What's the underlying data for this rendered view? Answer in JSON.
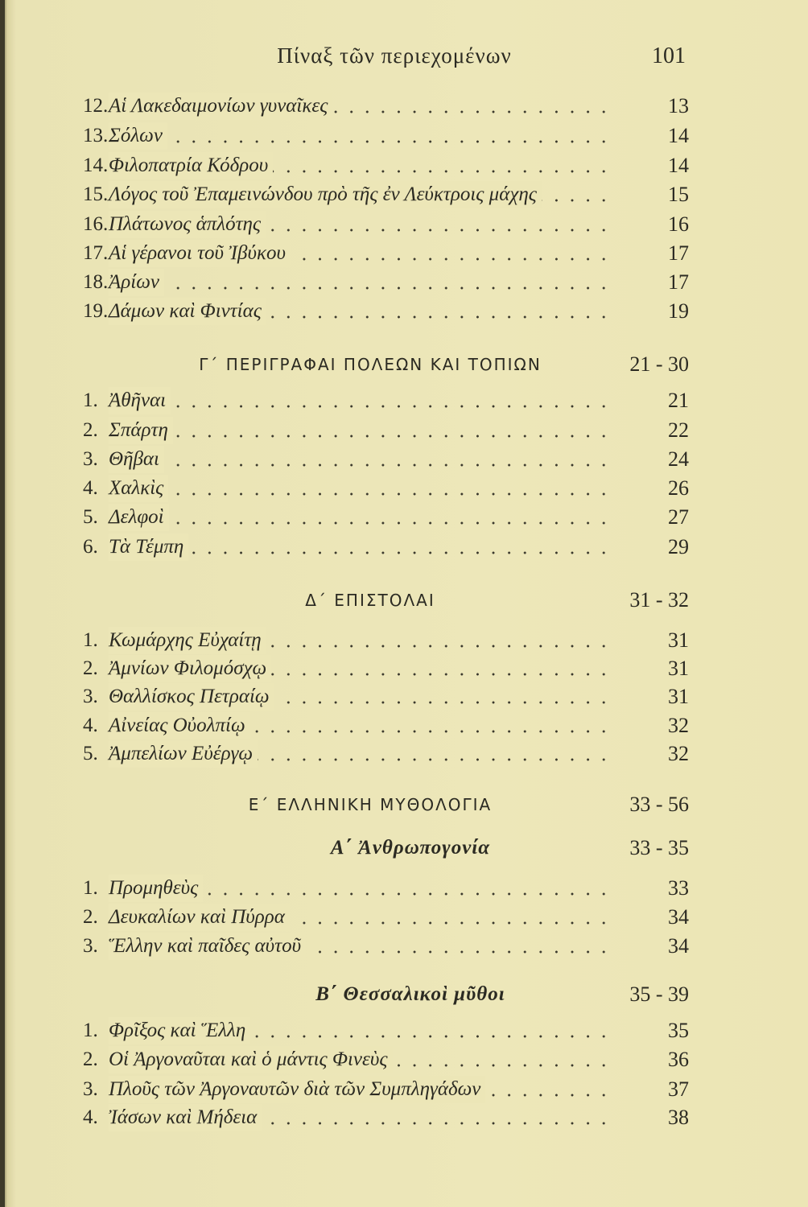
{
  "header": {
    "title": "Πίναξ τῶν περιεχομένων",
    "page_number": "101"
  },
  "blocks": [
    {
      "type": "items",
      "items": [
        {
          "num": "12.",
          "title": "Αἱ Λακεδαιμονίων γυναῖκες",
          "page": "13"
        },
        {
          "num": "13.",
          "title": "Σόλων",
          "page": "14"
        },
        {
          "num": "14.",
          "title": "Φιλοπατρία Κόδρου",
          "page": "14"
        },
        {
          "num": "15.",
          "title": "Λόγος τοῦ Ἐπαμεινώνδου πρὸ τῆς ἐν Λεύκτροις μάχης",
          "page": "15"
        },
        {
          "num": "16.",
          "title": "Πλάτωνος ἁπλότης",
          "page": "16"
        },
        {
          "num": "17.",
          "title": "Αἱ γέρανοι τοῦ Ἰβύκου",
          "page": "17"
        },
        {
          "num": "18.",
          "title": "Ἀρίων",
          "page": "17"
        },
        {
          "num": "19.",
          "title": "Δάμων καὶ Φιντίας",
          "page": "19"
        }
      ]
    },
    {
      "type": "section",
      "title": "Γ΄ ΠΕΡΙΓΡΑΦΑΙ ΠΟΛΕΩΝ ΚΑΙ ΤΟΠΙΩΝ",
      "range": "21 - 30"
    },
    {
      "type": "items",
      "items": [
        {
          "num": "1.",
          "title": "Ἀθῆναι",
          "page": "21"
        },
        {
          "num": "2.",
          "title": "Σπάρτη",
          "page": "22"
        },
        {
          "num": "3.",
          "title": "Θῆβαι",
          "page": "24"
        },
        {
          "num": "4.",
          "title": "Χαλκὶς",
          "page": "26"
        },
        {
          "num": "5.",
          "title": "Δελφοὶ",
          "page": "27"
        },
        {
          "num": "6.",
          "title": "Τὰ Τέμπη",
          "page": "29"
        }
      ]
    },
    {
      "type": "section",
      "title": "Δ΄ ΕΠΙΣΤΟΛΑΙ",
      "range": "31 - 32"
    },
    {
      "type": "items",
      "items": [
        {
          "num": "1.",
          "title": "Κωμάρχης Εὐχαίτῃ",
          "page": "31"
        },
        {
          "num": "2.",
          "title": "Ἀμνίων Φιλομόσχῳ",
          "page": "31"
        },
        {
          "num": "3.",
          "title": "Θαλλίσκος Πετραίῳ",
          "page": "31"
        },
        {
          "num": "4.",
          "title": "Αἰνείας Οὐολπίῳ",
          "page": "32"
        },
        {
          "num": "5.",
          "title": "Ἀμπελίων Εὐέργῳ",
          "page": "32"
        }
      ]
    },
    {
      "type": "section",
      "title": "Ε΄ ΕΛΛΗΝΙΚΗ ΜΥΘΟΛΟΓΙΑ",
      "range": "33 - 56"
    },
    {
      "type": "subsection",
      "title": "Α΄ Ἀνθρωπογονία",
      "range": "33 - 35"
    },
    {
      "type": "items",
      "items": [
        {
          "num": "1.",
          "title": "Προμηθεὺς",
          "page": "33"
        },
        {
          "num": "2.",
          "title": "Δευκαλίων καὶ Πύρρα",
          "page": "34"
        },
        {
          "num": "3.",
          "title": "Ἕλλην καὶ παῖδες αὐτοῦ",
          "page": "34"
        }
      ]
    },
    {
      "type": "subsection",
      "title": "Β΄ Θεσσαλικοὶ μῦθοι",
      "range": "35 - 39"
    },
    {
      "type": "items",
      "items": [
        {
          "num": "1.",
          "title": "Φρῖξος καὶ Ἕλλη",
          "page": "35"
        },
        {
          "num": "2.",
          "title": "Οἱ Ἀργοναῦται καὶ ὁ μάντις Φινεὺς",
          "page": "36"
        },
        {
          "num": "3.",
          "title": "Πλοῦς τῶν Ἀργοναυτῶν διὰ τῶν Συμπληγάδων",
          "page": "37"
        },
        {
          "num": "4.",
          "title": "Ἰάσων καὶ Μήδεια",
          "page": "38"
        }
      ]
    }
  ]
}
